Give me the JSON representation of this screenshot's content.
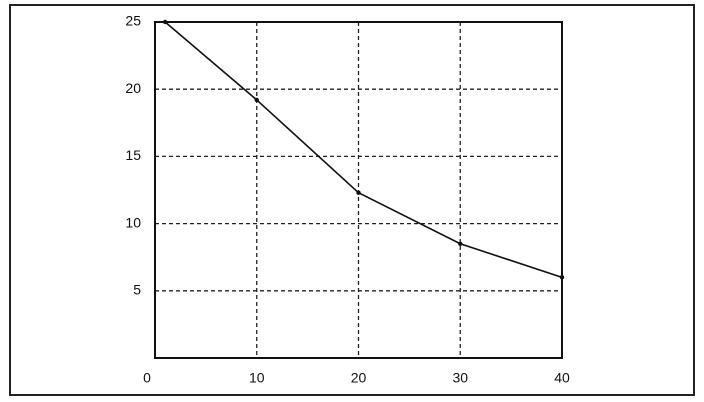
{
  "chart_data": {
    "type": "line",
    "x": [
      1,
      10,
      20,
      30,
      40
    ],
    "values": [
      25,
      19.2,
      12.3,
      8.5,
      6.0
    ],
    "color": "#111111",
    "xlim": [
      0,
      40
    ],
    "xticks": [
      0,
      10,
      20,
      30,
      40
    ],
    "ylim": [
      0,
      25
    ],
    "yticks": [
      5,
      10,
      15,
      20,
      25
    ],
    "grid": true
  }
}
